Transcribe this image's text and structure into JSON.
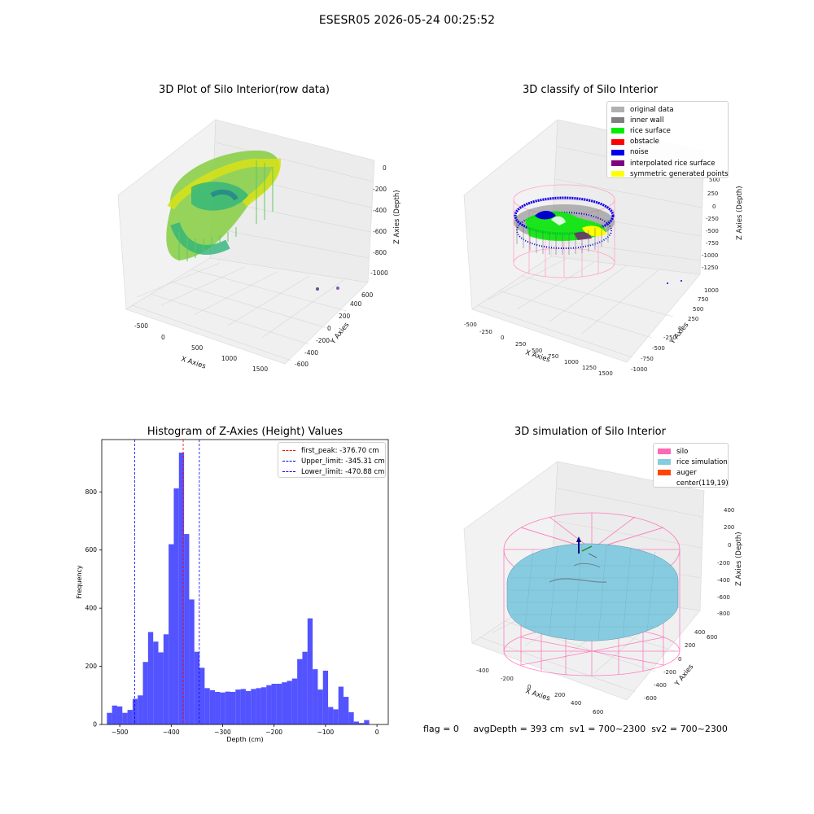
{
  "figure": {
    "title": "ESESR05 2026-05-24 00:25:52"
  },
  "status_line": "flag = 0     avgDepth = 393 cm  sv1 = 700~2300  sv2 = 700~2300",
  "chart_data": [
    {
      "type": "scatter3d",
      "title": "3D Plot of Silo Interior(row data)",
      "xlabel": "X Axies",
      "ylabel": "Y Axies",
      "zlabel": "Z Axies (Depth)",
      "xticks": [
        "-500",
        "0",
        "500",
        "1000",
        "1500"
      ],
      "yticks": [
        "-600",
        "-400",
        "-200",
        "0",
        "200",
        "400",
        "600"
      ],
      "zticks": [
        "0",
        "-200",
        "-400",
        "-600",
        "-800",
        "-1000"
      ],
      "colormap": "viridis",
      "grid": true
    },
    {
      "type": "scatter3d",
      "title": "3D classify of Silo Interior",
      "xlabel": "X Axies",
      "ylabel": "Y Axies",
      "zlabel": "Z Axies (Depth)",
      "xticks": [
        "-500",
        "-250",
        "0",
        "250",
        "500",
        "750",
        "1000",
        "1250",
        "1500"
      ],
      "yticks": [
        "-1000",
        "-750",
        "-500",
        "-250",
        "0",
        "250",
        "500",
        "750",
        "1000"
      ],
      "zticks": [
        "500",
        "250",
        "0",
        "-250",
        "-500",
        "-750",
        "-1000",
        "-1250"
      ],
      "legend": [
        {
          "label": "original data",
          "color": "#b0b0b0"
        },
        {
          "label": "inner wall",
          "color": "#808080"
        },
        {
          "label": "rice surface",
          "color": "#00ee00"
        },
        {
          "label": "obstacle",
          "color": "#ff0000"
        },
        {
          "label": "noise",
          "color": "#0000ee"
        },
        {
          "label": "interpolated rice surface",
          "color": "#800080"
        },
        {
          "label": "symmetric generated points",
          "color": "#ffff00"
        }
      ],
      "legend_position": "top-right",
      "grid": true
    },
    {
      "type": "histogram",
      "title": "Histogram of Z-Axies (Height) Values",
      "xlabel": "Depth (cm)",
      "ylabel": "Frequency",
      "bar_color": "#4040ff",
      "bin_start": -525,
      "bin_width": 10,
      "counts": [
        40,
        65,
        62,
        40,
        50,
        88,
        100,
        215,
        318,
        285,
        248,
        310,
        620,
        812,
        935,
        655,
        430,
        250,
        195,
        125,
        118,
        112,
        110,
        113,
        112,
        120,
        122,
        115,
        122,
        125,
        128,
        135,
        140,
        140,
        145,
        150,
        158,
        225,
        250,
        365,
        190,
        120,
        185,
        60,
        52,
        130,
        95,
        42,
        10,
        5,
        15
      ],
      "xlim": [
        -535,
        22
      ],
      "ylim": [
        0,
        980
      ],
      "xticks": [
        -500,
        -400,
        -300,
        -200,
        -100,
        0
      ],
      "xtick_labels": [
        "−500",
        "−400",
        "−300",
        "−200",
        "−100",
        "0"
      ],
      "yticks": [
        0,
        200,
        400,
        600,
        800
      ],
      "ytick_labels": [
        "0",
        "200",
        "400",
        "600",
        "800"
      ],
      "vlines": [
        {
          "label": "first_peak: -376.70 cm",
          "x": -376.7,
          "color": "#ff0000"
        },
        {
          "label": "Upper_limit: -345.31 cm",
          "x": -345.31,
          "color": "#0000ff"
        },
        {
          "label": "Lower_limit: -470.88 cm",
          "x": -470.88,
          "color": "#0000ff"
        }
      ],
      "legend_position": "top-right",
      "grid": false
    },
    {
      "type": "surface3d",
      "title": "3D simulation of Silo Interior",
      "xlabel": "X Axies",
      "ylabel": "Y Axies",
      "zlabel": "Z Axies (Depth)",
      "xticks": [
        "-400",
        "-200",
        "0",
        "200",
        "400",
        "600"
      ],
      "yticks": [
        "-600",
        "-400",
        "-200",
        "0",
        "200",
        "400",
        "600"
      ],
      "zticks": [
        "400",
        "200",
        "0",
        "-200",
        "-400",
        "-600",
        "-800"
      ],
      "legend": [
        {
          "label": "silo",
          "color": "#ff69b4"
        },
        {
          "label": "rice simulation",
          "color": "#87cbe0"
        },
        {
          "label": "auger",
          "color": "#ff4500"
        },
        {
          "label": "center(119,19)",
          "color": ""
        }
      ],
      "legend_position": "top-right",
      "grid": true
    }
  ]
}
